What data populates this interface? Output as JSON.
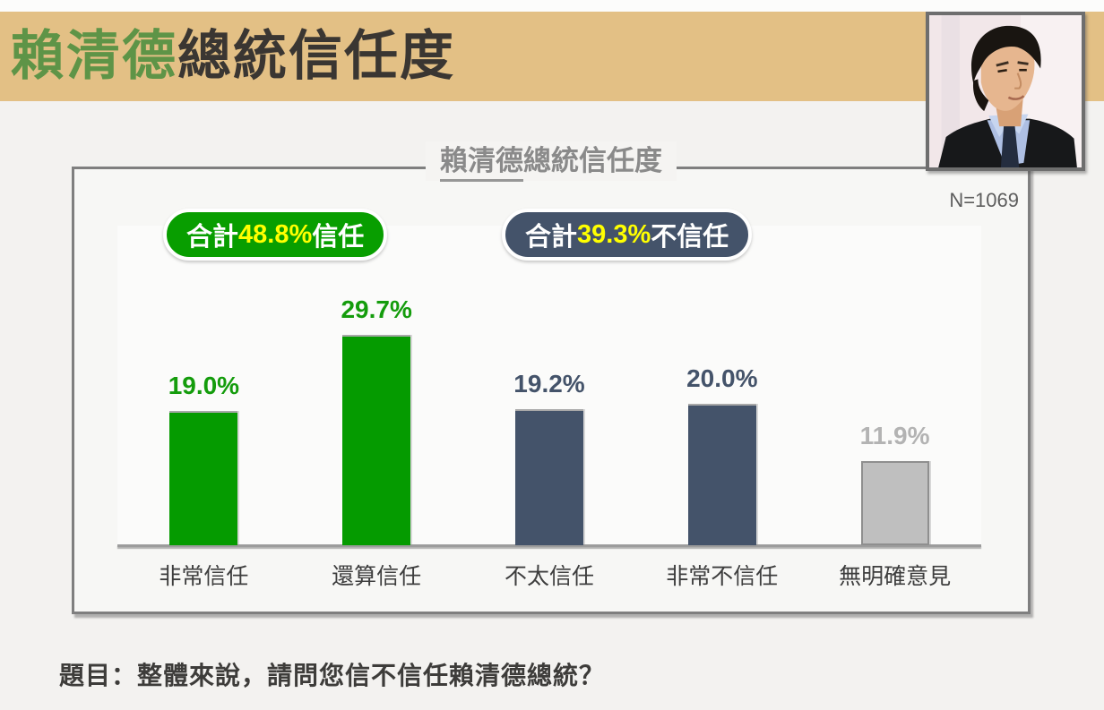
{
  "page": {
    "background": "#f3f2f0"
  },
  "header": {
    "title_highlight": "賴清德",
    "title_rest": "總統信任度",
    "banner_color": "#e3c085",
    "highlight_color": "#5e9447",
    "rest_color": "#3a3632",
    "photo": "lai-ching-te-portrait"
  },
  "chart_panel": {
    "title_underlined": "賴清德",
    "title_rest": "總統信任度",
    "n_label": "N=1069",
    "badges": [
      {
        "name": "trust-total",
        "prefix": "合計",
        "value": "48.8%",
        "suffix": "信任",
        "bg": "#089e00"
      },
      {
        "name": "distrust-total",
        "prefix": "合計",
        "value": "39.3%",
        "suffix": "不信任",
        "bg": "#44536a"
      }
    ]
  },
  "chart_data": {
    "type": "bar",
    "title": "賴清德總統信任度",
    "sample_size": 1069,
    "categories": [
      "非常信任",
      "還算信任",
      "不太信任",
      "非常不信任",
      "無明確意見"
    ],
    "values": [
      19.0,
      29.7,
      19.2,
      20.0,
      11.9
    ],
    "value_labels": [
      "19.0%",
      "29.7%",
      "19.2%",
      "20.0%",
      "11.9%"
    ],
    "bar_colors": [
      "#059b00",
      "#059b00",
      "#44536a",
      "#44536a",
      "#bfbfbf"
    ],
    "bar_borders": [
      "#a8a8a8",
      "#a8a8a8",
      "#a8a8a8",
      "#a8a8a8",
      "#8f8f8f"
    ],
    "label_colors": [
      "#149c0c",
      "#149c0c",
      "#44536a",
      "#44536a",
      "#b3b3b3"
    ],
    "totals": {
      "trust_pct": 48.8,
      "distrust_pct": 39.3
    },
    "ylim": [
      0,
      35
    ],
    "unit": "%",
    "grid": false,
    "legend": "none"
  },
  "footer": {
    "question": "題目：整體來說，請問您信不信任賴清德總統？"
  }
}
